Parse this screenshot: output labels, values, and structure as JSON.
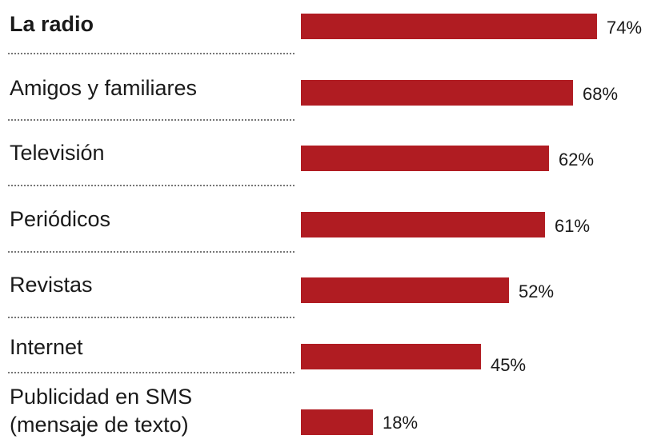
{
  "chart_data": {
    "type": "bar",
    "orientation": "horizontal",
    "categories": [
      "La radio",
      "Amigos y familiares",
      "Televisión",
      "Periódicos",
      "Revistas",
      "Internet",
      "Publicidad en SMS (mensaje de texto)"
    ],
    "category_lines": [
      [
        "La radio"
      ],
      [
        "Amigos y familiares"
      ],
      [
        "Televisión"
      ],
      [
        "Periódicos"
      ],
      [
        "Revistas"
      ],
      [
        "Internet"
      ],
      [
        "Publicidad en SMS",
        "(mensaje de texto)"
      ]
    ],
    "values": [
      74,
      68,
      62,
      61,
      52,
      45,
      18
    ],
    "value_labels": [
      "74%",
      "68%",
      "62%",
      "61%",
      "52%",
      "45%",
      "18%"
    ],
    "highlighted_category": "La radio",
    "bar_color": "#b01c22",
    "grid": false,
    "legend": "none"
  }
}
